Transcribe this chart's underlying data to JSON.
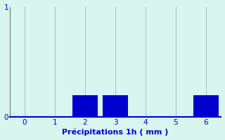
{
  "categories": [
    0,
    1,
    2,
    3,
    4,
    5,
    6
  ],
  "values": [
    0,
    0,
    0.2,
    0.2,
    0,
    0,
    0.2
  ],
  "bar_color": "#0000cc",
  "background_color": "#d8f5ee",
  "xlabel": "Précipitations 1h ( mm )",
  "xlabel_color": "#0000cc",
  "xlabel_fontsize": 8,
  "tick_color": "#0000cc",
  "tick_fontsize": 7.5,
  "left_spine_color": "#888888",
  "bottom_spine_color": "#0000cc",
  "ylim": [
    0,
    1.0
  ],
  "xlim": [
    -0.5,
    6.5
  ],
  "yticks": [
    0,
    1
  ],
  "xticks": [
    0,
    1,
    2,
    3,
    4,
    5,
    6
  ],
  "grid_color": "#aaccbb",
  "bar_width": 0.85
}
